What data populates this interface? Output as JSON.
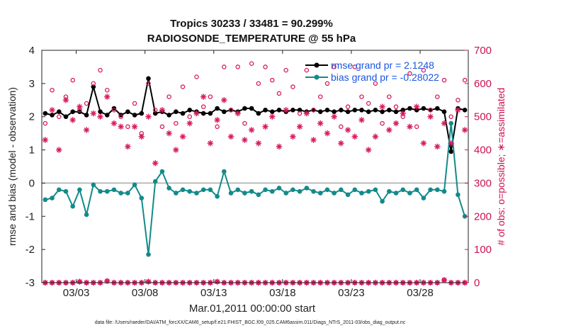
{
  "chart_data": {
    "type": "line",
    "title": "Tropics 30233 / 33481 = 90.299%",
    "subtitle": "RADIOSONDE_TEMPERATURE @ 55 hPa",
    "xlabel": "Mar.01,2011 00:00:00 start",
    "ylabel": "rmse and bias (model - observation)",
    "y2label": "# of obs: o=possible; ∗=assimilated",
    "footnote": "data file: /Users/raeder/DAI/ATM_forcXX/CAM6_setup/f.e21.FHIST_BGC.f09_025.CAM6assim.011/Diags_NTrS_2011-03/obs_diag_output.nc",
    "xlim": [
      0.5,
      31.5
    ],
    "ylim": [
      -3,
      4
    ],
    "y2lim": [
      0,
      700
    ],
    "xticks": [
      3,
      8,
      13,
      18,
      23,
      28
    ],
    "xticklabels": [
      "03/03",
      "03/08",
      "03/13",
      "03/18",
      "03/23",
      "03/28"
    ],
    "yticks": [
      -3,
      -2,
      -1,
      0,
      1,
      2,
      3,
      4
    ],
    "y2ticks": [
      0,
      100,
      200,
      300,
      400,
      500,
      600,
      700
    ],
    "grid": false,
    "legend_position": "top-right",
    "colors": {
      "rmse": "#000000",
      "bias": "#138a8a",
      "obs": "#d81b60",
      "zero_line": "#aaaaaa"
    },
    "x": [
      0.75,
      1.25,
      1.75,
      2.25,
      2.75,
      3.25,
      3.75,
      4.25,
      4.75,
      5.25,
      5.75,
      6.25,
      6.75,
      7.25,
      7.75,
      8.25,
      8.75,
      9.25,
      9.75,
      10.25,
      10.75,
      11.25,
      11.75,
      12.25,
      12.75,
      13.25,
      13.75,
      14.25,
      14.75,
      15.25,
      15.75,
      16.25,
      16.75,
      17.25,
      17.75,
      18.25,
      18.75,
      19.25,
      19.75,
      20.25,
      20.75,
      21.25,
      21.75,
      22.25,
      22.75,
      23.25,
      23.75,
      24.25,
      24.75,
      25.25,
      25.75,
      26.25,
      26.75,
      27.25,
      27.75,
      28.25,
      28.75,
      29.25,
      29.75,
      30.25,
      30.75,
      31.25
    ],
    "series": [
      {
        "name": "rmse",
        "legend": "rmse grand pr = 2.1248",
        "color": "#000000",
        "marker": "filled-circle",
        "values": [
          2.1,
          2.05,
          2.15,
          2.0,
          2.15,
          2.15,
          2.05,
          2.9,
          2.15,
          2.05,
          2.25,
          2.05,
          2.15,
          2.05,
          2.1,
          3.15,
          2.1,
          2.15,
          2.05,
          2.15,
          2.1,
          2.2,
          2.15,
          2.1,
          2.1,
          2.25,
          2.15,
          2.2,
          2.15,
          2.25,
          2.25,
          2.1,
          2.2,
          2.15,
          2.2,
          2.15,
          2.2,
          2.2,
          2.15,
          2.2,
          2.15,
          2.2,
          2.15,
          2.2,
          2.15,
          2.2,
          2.2,
          2.15,
          2.2,
          2.15,
          2.2,
          2.15,
          2.2,
          2.25,
          2.2,
          2.25,
          2.2,
          2.25,
          2.15,
          0.95,
          2.25,
          2.2
        ]
      },
      {
        "name": "bias",
        "legend": "bias grand pr = -0.28022",
        "color": "#138a8a",
        "marker": "filled-circle",
        "values": [
          -0.5,
          -0.45,
          -0.2,
          -0.25,
          -0.7,
          -0.2,
          -0.95,
          -0.05,
          -0.25,
          -0.25,
          -0.2,
          -0.3,
          -0.3,
          -0.05,
          -0.45,
          -2.15,
          0.05,
          0.35,
          -0.15,
          -0.3,
          -0.2,
          -0.25,
          -0.3,
          -0.2,
          -0.2,
          -0.4,
          0.35,
          -0.3,
          -0.2,
          -0.3,
          -0.25,
          -0.35,
          -0.2,
          -0.25,
          -0.15,
          -0.3,
          -0.2,
          -0.25,
          -0.15,
          -0.25,
          -0.3,
          -0.2,
          -0.3,
          -0.2,
          -0.35,
          -0.2,
          -0.3,
          -0.25,
          -0.2,
          -0.55,
          -0.25,
          -0.3,
          -0.2,
          -0.3,
          -0.2,
          -0.45,
          -0.2,
          -0.2,
          -0.25,
          1.8,
          -0.35,
          -1.0
        ]
      },
      {
        "name": "obs_possible",
        "color": "#d81b60",
        "marker": "open-circle",
        "axis": "right",
        "values": [
          480,
          580,
          500,
          560,
          610,
          520,
          540,
          600,
          640,
          580,
          520,
          500,
          470,
          540,
          450,
          600,
          520,
          470,
          560,
          480,
          590,
          500,
          620,
          530,
          560,
          470,
          650,
          520,
          650,
          480,
          660,
          600,
          650,
          610,
          570,
          640,
          590,
          510,
          640,
          520,
          560,
          600,
          650,
          470,
          530,
          650,
          560,
          540,
          600,
          480,
          560,
          530,
          500,
          630,
          470,
          640,
          520,
          560,
          610,
          500,
          550,
          610
        ]
      },
      {
        "name": "obs_assimilated",
        "color": "#d81b60",
        "marker": "asterisk",
        "axis": "right",
        "values": [
          430,
          520,
          400,
          550,
          490,
          530,
          460,
          510,
          500,
          560,
          480,
          470,
          410,
          470,
          440,
          500,
          360,
          520,
          450,
          400,
          440,
          480,
          510,
          560,
          420,
          490,
          550,
          440,
          510,
          430,
          460,
          420,
          470,
          500,
          410,
          520,
          440,
          470,
          510,
          430,
          480,
          450,
          500,
          420,
          460,
          440,
          490,
          400,
          440,
          530,
          460,
          480,
          510,
          470,
          530,
          420,
          500,
          410,
          480,
          420,
          520,
          460
        ]
      },
      {
        "name": "obs_possible_baseline",
        "color": "#d81b60",
        "marker": "open-circle",
        "axis": "right",
        "values": [
          0,
          0,
          0,
          0,
          0,
          3,
          0,
          0,
          0,
          5,
          0,
          0,
          0,
          0,
          0,
          3,
          0,
          0,
          0,
          0,
          0,
          0,
          0,
          0,
          0,
          3,
          0,
          0,
          0,
          0,
          0,
          0,
          0,
          0,
          0,
          0,
          0,
          0,
          0,
          0,
          0,
          0,
          0,
          0,
          0,
          0,
          0,
          0,
          0,
          0,
          0,
          0,
          0,
          0,
          0,
          0,
          0,
          0,
          8,
          0,
          0,
          0
        ]
      },
      {
        "name": "obs_assimilated_baseline",
        "color": "#d81b60",
        "marker": "asterisk",
        "axis": "right",
        "values": [
          0,
          0,
          0,
          0,
          0,
          3,
          0,
          0,
          0,
          5,
          0,
          0,
          0,
          0,
          0,
          3,
          0,
          0,
          0,
          0,
          0,
          0,
          0,
          0,
          0,
          3,
          0,
          0,
          0,
          0,
          0,
          0,
          0,
          0,
          0,
          0,
          0,
          0,
          0,
          0,
          0,
          0,
          0,
          0,
          0,
          0,
          0,
          0,
          0,
          0,
          0,
          0,
          0,
          0,
          0,
          0,
          0,
          0,
          8,
          0,
          0,
          0
        ]
      }
    ]
  }
}
